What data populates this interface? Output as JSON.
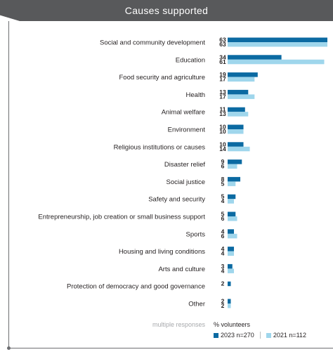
{
  "chart_data": {
    "type": "bar",
    "orientation": "horizontal",
    "title": "Causes supported",
    "ylabel": "% volunteers",
    "note": "multiple responses",
    "categories": [
      "Social and community development",
      "Education",
      "Food security and agriculture",
      "Health",
      "Animal welfare",
      "Environment",
      "Religious institutions or causes",
      "Disaster relief",
      "Social justice",
      "Safety and security",
      "Entrepreneurship, job creation or small business support",
      "Sports",
      "Housing and living conditions",
      "Arts and culture",
      "Protection of democracy and good governance",
      "Other"
    ],
    "series": [
      {
        "name": "2023 n=270",
        "color": "#0b6aa2",
        "values": [
          63,
          34,
          19,
          13,
          11,
          10,
          10,
          9,
          8,
          5,
          5,
          4,
          4,
          3,
          2,
          2
        ]
      },
      {
        "name": "2021 n=112",
        "color": "#9fd6ec",
        "values": [
          63,
          61,
          17,
          17,
          13,
          10,
          14,
          6,
          5,
          4,
          6,
          6,
          4,
          4,
          null,
          2
        ]
      }
    ],
    "xlim": [
      0,
      63
    ],
    "grid": false,
    "legend": "bottom"
  }
}
